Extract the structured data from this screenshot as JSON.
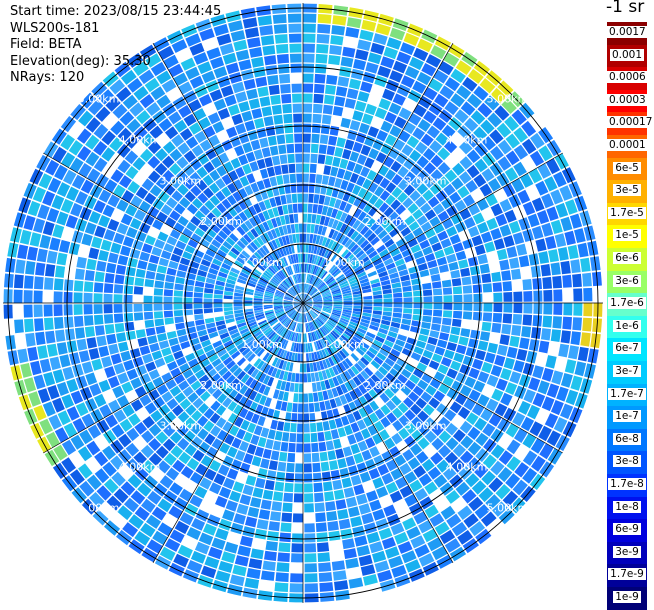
{
  "info": {
    "start_time": "Start time: 2023/08/15 23:44:45",
    "instrument": "WLS200s-181",
    "field": "Field: BETA",
    "elevation": "Elevation(deg): 35.30",
    "nrays": "NRays: 120"
  },
  "colorbar": {
    "unit_title": "-1 sr",
    "labels": [
      "0.0017",
      "0.001",
      "0.0006",
      "0.0003",
      "0.00017",
      "0.0001",
      "6e-5",
      "3e-5",
      "1.7e-5",
      "1e-5",
      "6e-6",
      "3e-6",
      "1.7e-6",
      "1e-6",
      "6e-7",
      "3e-7",
      "1.7e-7",
      "1e-7",
      "6e-8",
      "3e-8",
      "1.7e-8",
      "1e-8",
      "6e-9",
      "3e-9",
      "1.7e-9",
      "1e-9"
    ],
    "colors": [
      "#8b0000",
      "#b00000",
      "#d80000",
      "#ff0000",
      "#ff3300",
      "#ff6600",
      "#ff8c00",
      "#ffb000",
      "#ffd700",
      "#ffff00",
      "#ccff33",
      "#99ff66",
      "#66ffcc",
      "#33ffee",
      "#00e5ff",
      "#00ccff",
      "#00b2ff",
      "#0099ff",
      "#0077ff",
      "#0055ff",
      "#0033ff",
      "#0011ee",
      "#0000dd",
      "#0000bb",
      "#000099",
      "#000077"
    ]
  },
  "ring_labels": [
    "1.00km",
    "2.00km",
    "3.00km",
    "4.00km",
    "5.00km"
  ]
}
